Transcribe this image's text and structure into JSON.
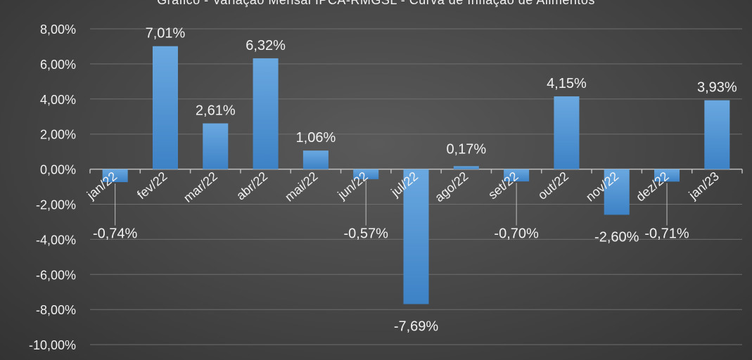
{
  "chart_data": {
    "type": "bar",
    "title": "Gráfico - Variação Mensal IPCA-RMGSL - Curva de Inflação de Alimentos",
    "xlabel": "",
    "ylabel": "",
    "categories": [
      "jan/22",
      "fev/22",
      "mar/22",
      "abr/22",
      "mai/22",
      "jun/22",
      "jul/22",
      "ago/22",
      "set/22",
      "out/22",
      "nov/22",
      "dez/22",
      "jan/23"
    ],
    "values": [
      -0.74,
      7.01,
      2.61,
      6.32,
      1.06,
      -0.57,
      -7.69,
      0.17,
      -0.7,
      4.15,
      -2.6,
      -0.71,
      3.93
    ],
    "data_labels": [
      "-0,74%",
      "7,01%",
      "2,61%",
      "6,32%",
      "1,06%",
      "-0,57%",
      "-7,69%",
      "0,17%",
      "-0,70%",
      "4,15%",
      "-2,60%",
      "-0,71%",
      "3,93%"
    ],
    "yticks": [
      8,
      6,
      4,
      2,
      0,
      -2,
      -4,
      -6,
      -8,
      -10
    ],
    "ytick_labels": [
      "8,00%",
      "6,00%",
      "4,00%",
      "2,00%",
      "0,00%",
      "-2,00%",
      "-4,00%",
      "-6,00%",
      "-8,00%",
      "-10,00%"
    ],
    "ylim": [
      -10,
      8
    ],
    "grid": true,
    "colors": {
      "bar": "#5b9bd5",
      "bar_dark": "#3a7cc0",
      "text": "#f2f2f2",
      "grid": "#6e6e6e",
      "axis": "#bfbfbf"
    }
  }
}
